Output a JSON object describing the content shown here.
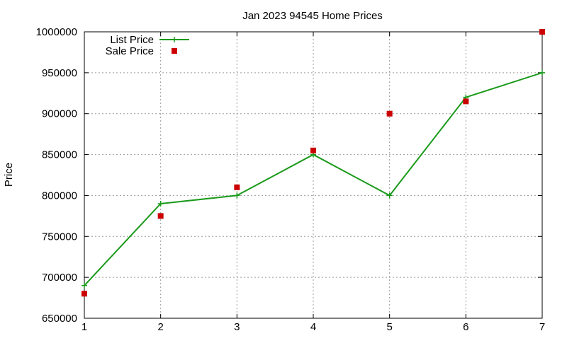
{
  "chart_data": {
    "type": "line",
    "title": "Jan 2023 94545 Home Prices",
    "xlabel": "",
    "ylabel": "Price",
    "xlim": [
      1,
      7
    ],
    "ylim": [
      650000,
      1000000
    ],
    "x_ticks": [
      "1",
      "2",
      "3",
      "4",
      "5",
      "6",
      "7"
    ],
    "y_ticks": [
      "650000",
      "700000",
      "750000",
      "800000",
      "850000",
      "900000",
      "950000",
      "1000000"
    ],
    "grid": true,
    "legend_position": "top-left",
    "series": [
      {
        "name": "List Price",
        "style": "line+cross",
        "color": "#1a9a1a",
        "x": [
          1,
          2,
          3,
          4,
          5,
          6,
          7
        ],
        "values": [
          690000,
          790000,
          800000,
          850000,
          800000,
          920000,
          950000
        ]
      },
      {
        "name": "Sale Price",
        "style": "square",
        "color": "#cc0000",
        "x": [
          1,
          2,
          3,
          4,
          5,
          6,
          7
        ],
        "values": [
          680000,
          775000,
          810000,
          855000,
          900000,
          915000,
          1000000
        ]
      }
    ]
  }
}
